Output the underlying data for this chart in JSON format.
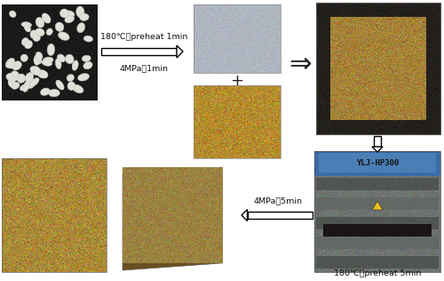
{
  "bg_color": "#ffffff",
  "arrow1_text_top": "180℃，preheat 1min",
  "arrow1_text_bot": "4MPa，1min",
  "arrow4_text": "4MPa，5min",
  "bottom_label": "180℃，preheat 5min",
  "press_label": "YLJ-HP300",
  "plus": "+",
  "layout": {
    "fig_w": 5.0,
    "fig_h": 3.16,
    "dpi": 100
  },
  "pla_bg": "#1a1a1a",
  "pla_pellet": "#e8e8e0",
  "film_color": "#b8bfc8",
  "fiber_dark": "#8a6820",
  "fiber_light": "#d4a840",
  "mold_border": "#1a1a1a",
  "mold_inner": "#b09050",
  "press_blue": "#4a7fb5",
  "press_gray": "#8a9090",
  "press_dark": "#404040",
  "composite_zoom": "#c0a050",
  "composite_flat_top": "#a08848",
  "composite_flat_side": "#6a5830",
  "label_color": "#222222",
  "arrow_body": "#ffffff",
  "arrow_edge": "#111111"
}
